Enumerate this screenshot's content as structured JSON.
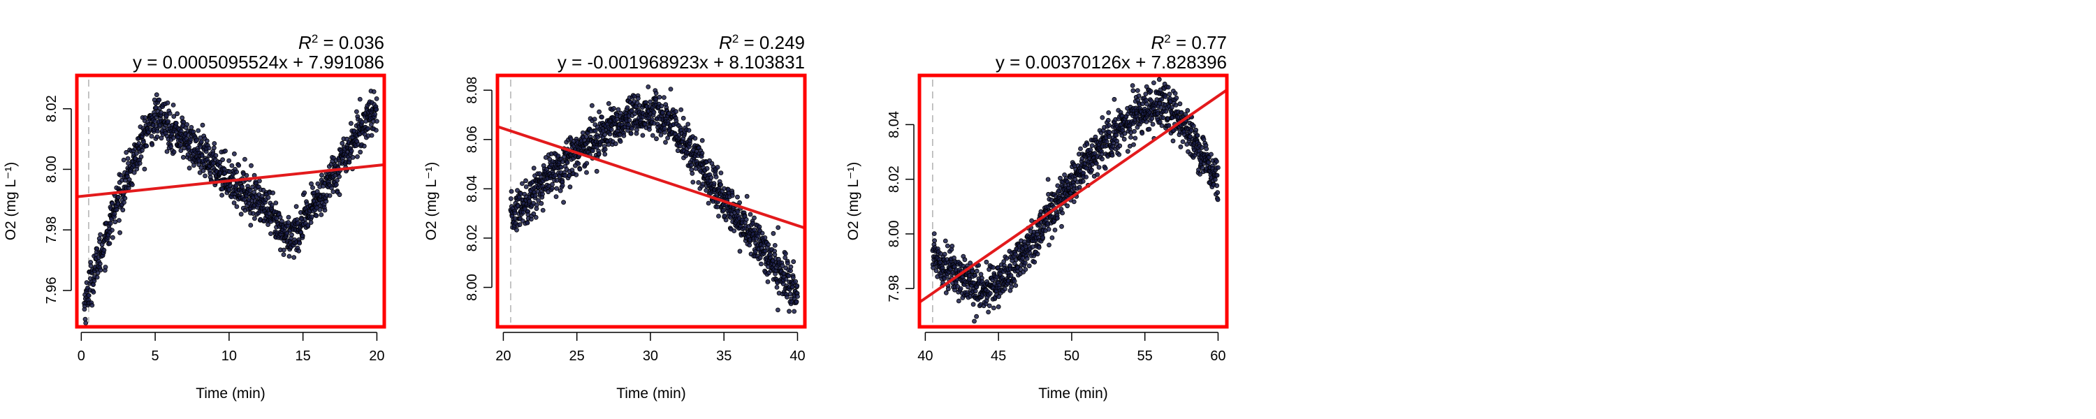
{
  "chart_data": [
    {
      "type": "scatter",
      "xlabel": "Time (min)",
      "ylabel": "O2 (mg L⁻¹)",
      "xlim": [
        -0.3,
        20.5
      ],
      "ylim": [
        7.948,
        8.031
      ],
      "xticks": [
        0,
        5,
        10,
        15,
        20
      ],
      "yticks": [
        7.96,
        7.98,
        8.0,
        8.02
      ],
      "ytick_labels": [
        "7.96",
        "7.98",
        "8.00",
        "8.02"
      ],
      "vline_x": 0.5,
      "r2_value": "0.036",
      "equation": "y = 0.0005095524x + 7.991086",
      "fit": {
        "slope": 0.0005095524,
        "intercept": 7.991086
      },
      "series_x": [
        0.2,
        0.6,
        1.0,
        1.5,
        2.0,
        2.5,
        3.0,
        3.5,
        4.0,
        4.5,
        5.0,
        5.5,
        6.0,
        6.5,
        7.0,
        8.0,
        9.0,
        10.0,
        11.0,
        12.0,
        13.0,
        13.5,
        14.0,
        14.5,
        15.0,
        16.0,
        17.0,
        18.0,
        19.0,
        19.5,
        20.0
      ],
      "series_y": [
        7.955,
        7.962,
        7.968,
        7.975,
        7.983,
        7.99,
        7.996,
        8.002,
        8.008,
        8.013,
        8.017,
        8.016,
        8.014,
        8.012,
        8.01,
        8.005,
        8.001,
        7.997,
        7.993,
        7.99,
        7.983,
        7.979,
        7.978,
        7.979,
        7.982,
        7.99,
        7.998,
        8.006,
        8.014,
        8.018,
        8.02
      ],
      "noise": 0.0035
    },
    {
      "type": "scatter",
      "xlabel": "Time (min)",
      "ylabel": "O2 (mg L⁻¹)",
      "xlim": [
        19.6,
        40.5
      ],
      "ylim": [
        7.984,
        8.086
      ],
      "xticks": [
        20,
        25,
        30,
        35,
        40
      ],
      "yticks": [
        8.0,
        8.02,
        8.04,
        8.06,
        8.08
      ],
      "ytick_labels": [
        "8.00",
        "8.02",
        "8.04",
        "8.06",
        "8.08"
      ],
      "vline_x": 20.5,
      "r2_value": "0.249",
      "equation": "y = -0.001968923x + 8.103831",
      "fit": {
        "slope": -0.001968923,
        "intercept": 8.103831
      },
      "series_x": [
        20.5,
        21,
        22,
        23,
        24,
        25,
        26,
        27,
        28,
        29,
        30,
        31,
        32,
        33,
        34,
        35,
        36,
        37,
        38,
        39,
        40
      ],
      "series_y": [
        8.028,
        8.032,
        8.038,
        8.044,
        8.05,
        8.055,
        8.06,
        8.063,
        8.066,
        8.069,
        8.071,
        8.068,
        8.062,
        8.053,
        8.044,
        8.035,
        8.028,
        8.02,
        8.012,
        8.005,
        7.996
      ],
      "noise": 0.0045
    },
    {
      "type": "scatter",
      "xlabel": "Time (min)",
      "ylabel": "O2 (mg L⁻¹)",
      "xlim": [
        39.6,
        60.6
      ],
      "ylim": [
        7.966,
        8.058
      ],
      "xticks": [
        40,
        45,
        50,
        55,
        60
      ],
      "yticks": [
        7.98,
        8.0,
        8.02,
        8.04
      ],
      "ytick_labels": [
        "7.98",
        "8.00",
        "8.02",
        "8.04"
      ],
      "vline_x": 40.5,
      "r2_value": "0.77",
      "equation": "y = 0.00370126x + 7.828396",
      "fit": {
        "slope": 0.00370126,
        "intercept": 7.828396
      },
      "series_x": [
        40.5,
        41,
        42,
        43,
        44,
        45,
        46,
        47,
        48,
        49,
        50,
        51,
        52,
        53,
        54,
        55,
        56,
        57,
        58,
        59,
        60
      ],
      "series_y": [
        7.993,
        7.99,
        7.986,
        7.982,
        7.979,
        7.982,
        7.988,
        7.995,
        8.003,
        8.011,
        8.019,
        8.026,
        8.032,
        8.037,
        8.042,
        8.046,
        8.047,
        8.044,
        8.037,
        8.028,
        8.019
      ],
      "noise": 0.004
    }
  ],
  "colors": {
    "frame": "#ff0000",
    "fit_line": "#e31a1c",
    "points_fill": "#1b1f4b",
    "points_stroke": "#000000",
    "vline": "#b0b0b0"
  }
}
